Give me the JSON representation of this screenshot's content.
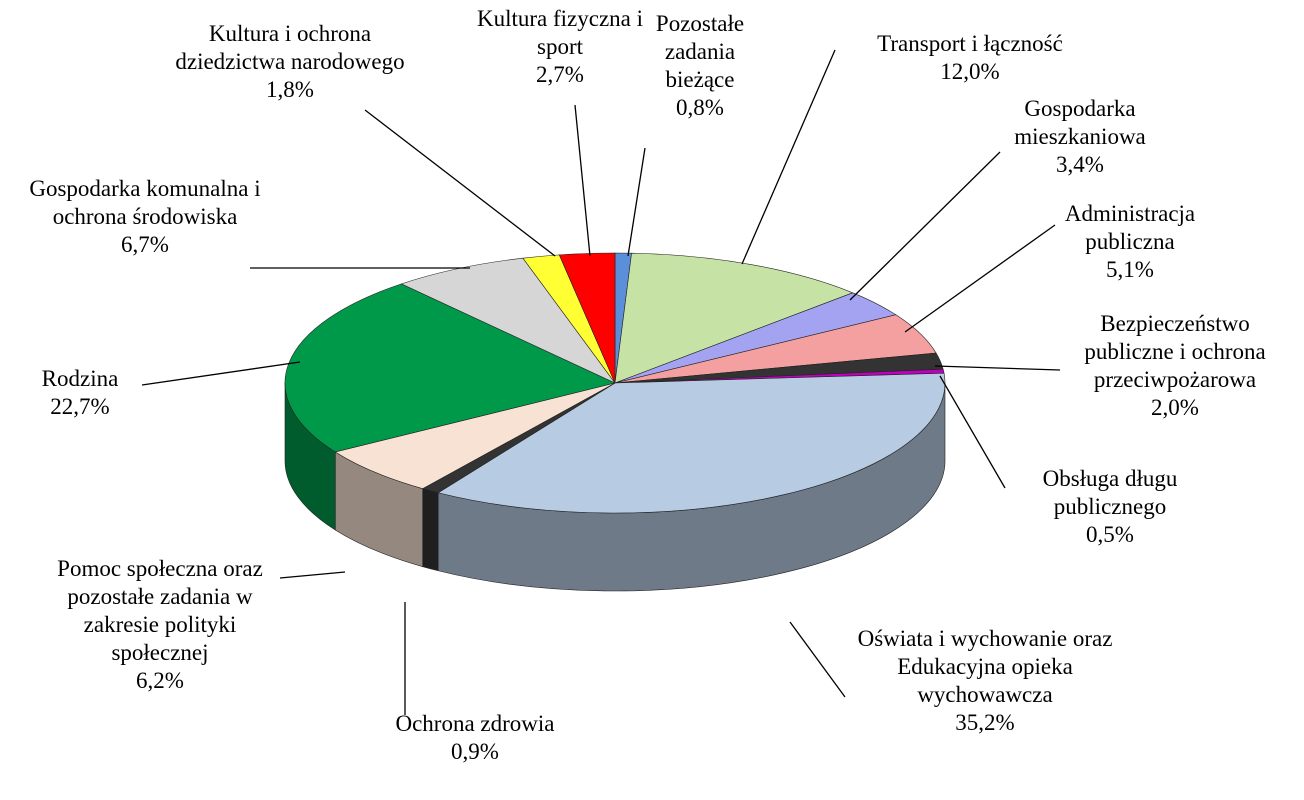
{
  "chart_data": {
    "type": "pie",
    "categories": [
      "Pozostałe zadania bieżące",
      "Transport i łączność",
      "Gospodarka mieszkaniowa",
      "Administracja publiczna",
      "Bezpieczeństwo publiczne i ochrona przeciwpożarowa",
      "Obsługa długu publicznego",
      "Oświata i wychowanie oraz Edukacyjna opieka wychowawcza",
      "Ochrona zdrowia",
      "Pomoc społeczna oraz pozostałe zadania w zakresie polityki społecznej",
      "Rodzina",
      "Gospodarka komunalna i ochrona środowiska",
      "Kultura i ochrona dziedzictwa narodowego",
      "Kultura fizyczna i sport"
    ],
    "values": [
      0.8,
      12.0,
      3.4,
      5.1,
      2.0,
      0.5,
      35.2,
      0.9,
      6.2,
      22.7,
      6.7,
      1.8,
      2.7
    ],
    "value_labels": [
      "0,8%",
      "12,0%",
      "3,4%",
      "5,1%",
      "2,0%",
      "0,5%",
      "35,2%",
      "0,9%",
      "6,2%",
      "22,7%",
      "6,7%",
      "1,8%",
      "2,7%"
    ],
    "colors": [
      "#5b8fd9",
      "#c6e3a5",
      "#a3a3f2",
      "#f4a0a0",
      "#333333",
      "#c000c0",
      "#b7cce3",
      "#333333",
      "#f7e2d3",
      "#00994a",
      "#d6d6d6",
      "#ffff33",
      "#ff0000"
    ]
  }
}
